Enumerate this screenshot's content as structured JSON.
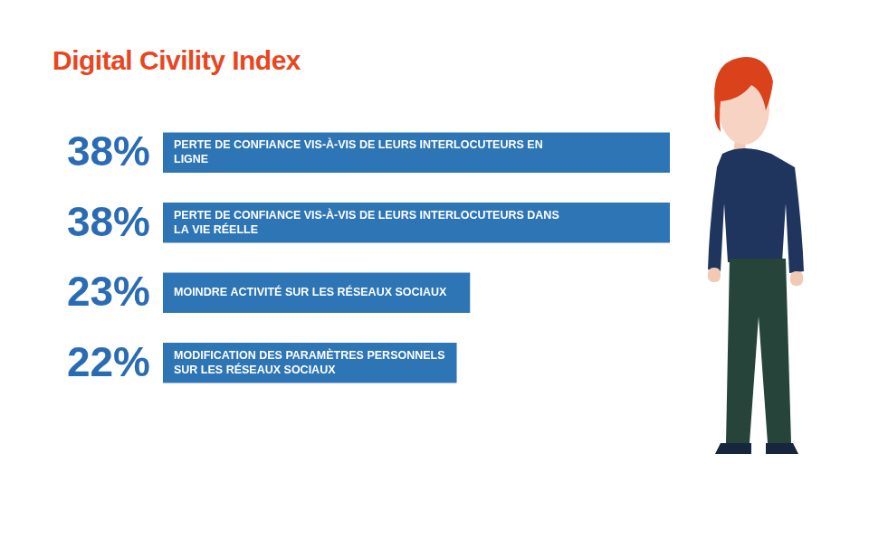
{
  "chart_data": {
    "type": "bar",
    "title": "Digital Civility Index",
    "orientation": "horizontal",
    "categories": [
      "PERTE DE CONFIANCE VIS-À-VIS DE LEURS INTERLOCUTEURS EN LIGNE",
      "PERTE DE CONFIANCE VIS-À-VIS DE LEURS INTERLOCUTEURS DANS LA VIE RÉELLE",
      "MOINDRE ACTIVITÉ SUR LES RÉSEAUX SOCIAUX",
      "MODIFICATION DES PARAMÈTRES PERSONNELS SUR LES RÉSEAUX SOCIAUX"
    ],
    "values": [
      38,
      38,
      23,
      22
    ],
    "value_labels": [
      "38%",
      "38%",
      "23%",
      "22%"
    ],
    "color": "#2e75b6",
    "xlim": [
      0,
      38
    ],
    "grid": false,
    "tick_labels": false,
    "data_labels": true
  }
}
